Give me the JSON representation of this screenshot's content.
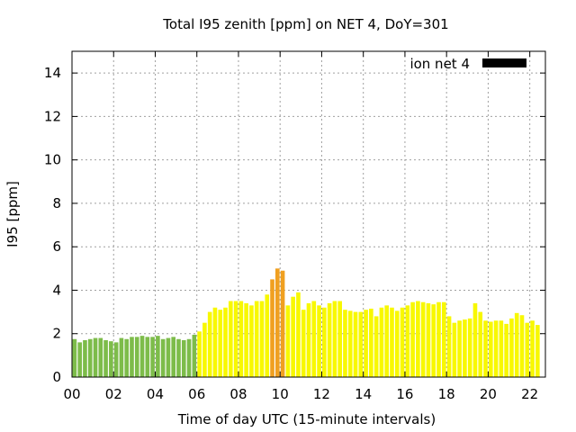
{
  "chart_data": {
    "type": "bar",
    "title": "Total I95 zenith [ppm] on NET 4, DoY=301",
    "xlabel": "Time of day UTC (15-minute intervals)",
    "ylabel": "I95 [ppm]",
    "legend": {
      "label": "ion net 4",
      "color": "#000000",
      "position": "top-right"
    },
    "grid": true,
    "xlim": [
      0,
      22.75
    ],
    "ylim": [
      0,
      15
    ],
    "x_ticks": [
      0,
      2,
      4,
      6,
      8,
      10,
      12,
      14,
      16,
      18,
      20,
      22
    ],
    "x_tick_labels": [
      "00",
      "02",
      "04",
      "06",
      "08",
      "10",
      "12",
      "14",
      "16",
      "18",
      "20",
      "22"
    ],
    "y_ticks": [
      0,
      2,
      4,
      6,
      8,
      10,
      12,
      14
    ],
    "y_tick_labels": [
      "0",
      "2",
      "4",
      "6",
      "8",
      "10",
      "12",
      "14"
    ],
    "bar_interval_hours": 0.25,
    "colors": {
      "green": "#7dbc4a",
      "yellow": "#f8f800",
      "orange": "#f0a020"
    },
    "values": [
      1.75,
      1.6,
      1.7,
      1.75,
      1.8,
      1.8,
      1.7,
      1.65,
      1.6,
      1.8,
      1.75,
      1.85,
      1.85,
      1.9,
      1.85,
      1.85,
      1.9,
      1.75,
      1.8,
      1.85,
      1.75,
      1.7,
      1.75,
      1.95,
      2.1,
      2.5,
      3.0,
      3.2,
      3.1,
      3.2,
      3.5,
      3.5,
      3.5,
      3.4,
      3.3,
      3.5,
      3.5,
      3.8,
      4.5,
      5.0,
      4.9,
      3.3,
      3.7,
      3.9,
      3.1,
      3.4,
      3.5,
      3.3,
      3.2,
      3.4,
      3.5,
      3.5,
      3.1,
      3.05,
      3.0,
      3.0,
      3.1,
      3.15,
      2.8,
      3.2,
      3.3,
      3.2,
      3.05,
      3.2,
      3.3,
      3.45,
      3.5,
      3.45,
      3.4,
      3.35,
      3.45,
      3.45,
      2.8,
      2.5,
      2.6,
      2.65,
      2.7,
      3.4,
      3.0,
      2.6,
      2.55,
      2.6,
      2.6,
      2.45,
      2.7,
      2.95,
      2.85,
      2.5,
      2.6,
      2.4
    ],
    "bar_colors": [
      "green",
      "green",
      "green",
      "green",
      "green",
      "green",
      "green",
      "green",
      "green",
      "green",
      "green",
      "green",
      "green",
      "green",
      "green",
      "green",
      "green",
      "green",
      "green",
      "green",
      "green",
      "green",
      "green",
      "green",
      "yellow",
      "yellow",
      "yellow",
      "yellow",
      "yellow",
      "yellow",
      "yellow",
      "yellow",
      "yellow",
      "yellow",
      "yellow",
      "yellow",
      "yellow",
      "yellow",
      "orange",
      "orange",
      "orange",
      "yellow",
      "yellow",
      "yellow",
      "yellow",
      "yellow",
      "yellow",
      "yellow",
      "yellow",
      "yellow",
      "yellow",
      "yellow",
      "yellow",
      "yellow",
      "yellow",
      "yellow",
      "yellow",
      "yellow",
      "yellow",
      "yellow",
      "yellow",
      "yellow",
      "yellow",
      "yellow",
      "yellow",
      "yellow",
      "yellow",
      "yellow",
      "yellow",
      "yellow",
      "yellow",
      "yellow",
      "yellow",
      "yellow",
      "yellow",
      "yellow",
      "yellow",
      "yellow",
      "yellow",
      "yellow",
      "yellow",
      "yellow",
      "yellow",
      "yellow",
      "yellow",
      "yellow",
      "yellow",
      "yellow",
      "yellow",
      "yellow"
    ]
  }
}
